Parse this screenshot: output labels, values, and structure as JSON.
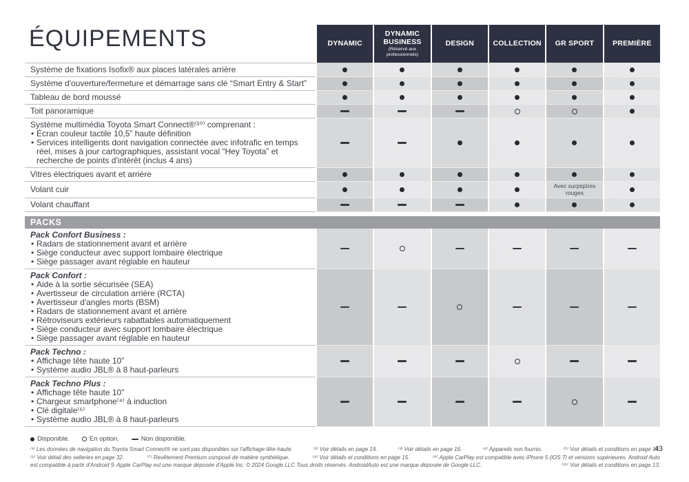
{
  "page": {
    "title": "ÉQUIPEMENTS",
    "page_number": "43"
  },
  "theme": {
    "header_bg": "#2d3142",
    "packs_bar_bg": "#9c9ea2",
    "column_dark": "#c7c9cb",
    "column_light": "#dfe0e2",
    "symbol_color": "#33373d"
  },
  "table": {
    "columns": [
      {
        "label": "DYNAMIC",
        "sublabel": ""
      },
      {
        "label": "DYNAMIC BUSINESS",
        "sublabel": "(Réservé aux professionnels)"
      },
      {
        "label": "DESIGN",
        "sublabel": ""
      },
      {
        "label": "COLLECTION",
        "sublabel": ""
      },
      {
        "label": "GR SPORT",
        "sublabel": ""
      },
      {
        "label": "PREMIÈRE",
        "sublabel": ""
      }
    ],
    "rows": [
      {
        "label": "Système de fixations Isofix® aux places latérales arrière",
        "values": [
          "dot",
          "dot",
          "dot",
          "dot",
          "dot",
          "dot"
        ]
      },
      {
        "label": "Système d'ouverture/fermeture et démarrage sans clé “Smart Entry & Start”",
        "values": [
          "dot",
          "dot",
          "dot",
          "dot",
          "dot",
          "dot"
        ]
      },
      {
        "label": "Tableau de bord moussé",
        "values": [
          "dot",
          "dot",
          "dot",
          "dot",
          "dot",
          "dot"
        ]
      },
      {
        "label": "Toit panoramique",
        "values": [
          "dash",
          "dash",
          "dash",
          "circle",
          "circle",
          "dot"
        ]
      },
      {
        "title": "Système multimédia Toyota Smart Connect®⁽¹⁰⁾ comprenant :",
        "bullets": [
          "Écran couleur tactile 10,5” haute définition",
          "Services intelligents dont navigation connectée avec infotrafic en temps réel, mises à jour cartographiques, assistant vocal “Hey Toyota” et recherche de points d'intérêt (inclus 4 ans)"
        ],
        "values": [
          "dash",
          "dash",
          "dot",
          "dot",
          "dot",
          "dot"
        ]
      },
      {
        "label": "Vitres électriques avant et arrière",
        "values": [
          "dot",
          "dot",
          "dot",
          "dot",
          "dot",
          "dot"
        ]
      },
      {
        "label": "Volant cuir",
        "values": [
          "dot",
          "dot",
          "dot",
          "dot",
          "Avec surpiqûres rouges",
          "dot"
        ]
      },
      {
        "label": "Volant chauffant",
        "values": [
          "dash",
          "dash",
          "dash",
          "dot",
          "dot",
          "dot"
        ]
      }
    ],
    "packs_header": "PACKS",
    "pack_rows": [
      {
        "title": "Pack Confort Business :",
        "bullets": [
          "Radars de stationnement avant et arrière",
          "Siège conducteur avec support lombaire électrique",
          "Siège passager avant réglable en hauteur"
        ],
        "values": [
          "dash",
          "circle",
          "dash",
          "dash",
          "dash",
          "dash"
        ]
      },
      {
        "title": "Pack Confort :",
        "bullets": [
          "Aide à la sortie sécurisée (SEA)",
          "Avertisseur de circulation arrière (RCTA)",
          "Avertisseur d'angles morts (BSM)",
          "Radars de stationnement avant et arrière",
          "Rétroviseurs extérieurs rabattables automatiquement",
          "Siège conducteur avec support lombaire électrique",
          "Siège passager avant réglable en hauteur"
        ],
        "values": [
          "dash",
          "dash",
          "circle",
          "dash",
          "dash",
          "dash"
        ]
      },
      {
        "title": "Pack Techno :",
        "bullets": [
          "Affichage tête haute 10”",
          "Système audio JBL® à 8 haut-parleurs"
        ],
        "values": [
          "dash",
          "dash",
          "dash",
          "circle",
          "dash",
          "dash"
        ]
      },
      {
        "title": "Pack Techno Plus :",
        "bullets": [
          "Affichage tête haute 10''",
          "Chargeur smartphone⁽⁴⁾ à induction",
          "Clé digitale⁽⁵⁾",
          "Système audio JBL® à 8 haut-parleurs"
        ],
        "values": [
          "dash",
          "dash",
          "dash",
          "dash",
          "circle",
          "dash"
        ]
      }
    ]
  },
  "legend": {
    "items": [
      {
        "symbol": "dot",
        "label": "Disponible."
      },
      {
        "symbol": "circle",
        "label": "En option."
      },
      {
        "symbol": "dash",
        "label": "Non disponible."
      }
    ]
  },
  "footnotes": [
    [
      "⁽¹⁾ Les données de navigation du Toyota Smart Connect® ne sont pas disponibles sur l'affichage tête-haute.",
      "⁽²⁾ Voir détails en page 19.",
      "⁽³⁾ Voir détails en page 16.",
      "⁽⁴⁾ Appareils non fournis.",
      "⁽⁵⁾ Voir détails et conditions en page 14."
    ],
    [
      "⁽⁶⁾ Voir détail des selleries en page 32.",
      "⁽⁷⁾ Revêtement Premium composé de matière synthétique.",
      "⁽⁸⁾ Voir détails et conditions en page 15.",
      "⁽⁹⁾ Apple CarPlay est compatible avec iPhone 5 (iOS 7) et versions supérieures. Android Auto"
    ],
    [
      "est compatible à partir d'Android 9. Apple CarPlay est une marque déposée d'Apple Inc. © 2024 Google LLC Tous droits réservés. AndroidAuto est une marque déposée de Google LLC.",
      "⁽¹⁰⁾ Voir détails et conditions en page 13."
    ]
  ]
}
